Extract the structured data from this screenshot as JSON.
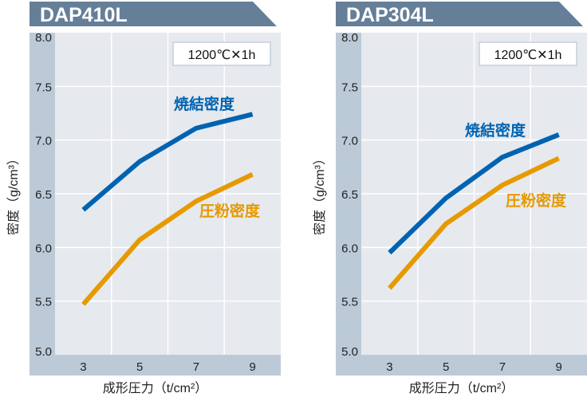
{
  "colors": {
    "banner": "#667f98",
    "panel": "#bccad8",
    "plot_bg": "#e6e9ee",
    "grid": "#ffffff",
    "sintered": "#0063b1",
    "green": "#e69a00"
  },
  "chart_data": [
    {
      "type": "line",
      "title": "DAP410L",
      "condition": "1200℃✕1h",
      "xlabel": "成形圧力（t/cm²）",
      "ylabel": "密度（g/cm³）",
      "x": [
        3,
        5,
        7,
        9
      ],
      "xticks": [
        "3",
        "5",
        "7",
        "9"
      ],
      "yticks": [
        "5.0",
        "5.5",
        "6.0",
        "6.5",
        "7.0",
        "7.5",
        "8.0"
      ],
      "xlim": [
        2,
        10
      ],
      "ylim": [
        5.0,
        8.0
      ],
      "grid": true,
      "series": [
        {
          "name": "焼結密度",
          "color": "#0063b1",
          "values": [
            6.35,
            6.8,
            7.11,
            7.24
          ]
        },
        {
          "name": "圧粉密度",
          "color": "#e69a00",
          "values": [
            5.47,
            6.07,
            6.43,
            6.68
          ]
        }
      ]
    },
    {
      "type": "line",
      "title": "DAP304L",
      "condition": "1200℃✕1h",
      "xlabel": "成形圧力（t/cm²）",
      "ylabel": "密度（g/cm³）",
      "x": [
        3,
        5,
        7,
        9
      ],
      "xticks": [
        "3",
        "5",
        "7",
        "9"
      ],
      "yticks": [
        "5.0",
        "5.5",
        "6.0",
        "6.5",
        "7.0",
        "7.5",
        "8.0"
      ],
      "xlim": [
        2,
        10
      ],
      "ylim": [
        5.0,
        8.0
      ],
      "grid": true,
      "series": [
        {
          "name": "焼結密度",
          "color": "#0063b1",
          "values": [
            5.95,
            6.46,
            6.84,
            7.05
          ]
        },
        {
          "name": "圧粉密度",
          "color": "#e69a00",
          "values": [
            5.62,
            6.22,
            6.58,
            6.83
          ]
        }
      ]
    }
  ]
}
